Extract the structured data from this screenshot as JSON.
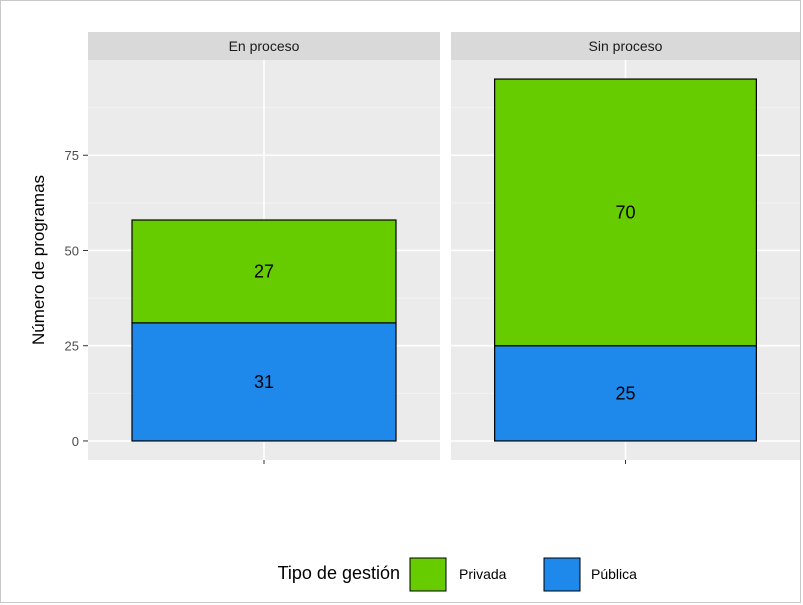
{
  "chart_data": {
    "type": "bar",
    "stacked": true,
    "facets": [
      "En proceso",
      "Sin proceso"
    ],
    "series": [
      {
        "name": "Pública",
        "values": [
          31,
          25
        ],
        "color": "#1e88eb"
      },
      {
        "name": "Privada",
        "values": [
          27,
          70
        ],
        "color": "#66cc00"
      }
    ],
    "ylabel": "Número de programas",
    "xlabel": "",
    "yticks": [
      0,
      25,
      50,
      75
    ],
    "ylim": [
      -5,
      100
    ],
    "grid": true,
    "legend": {
      "title": "Tipo de gestión",
      "position": "bottom",
      "entries": [
        "Privada",
        "Pública"
      ]
    }
  }
}
